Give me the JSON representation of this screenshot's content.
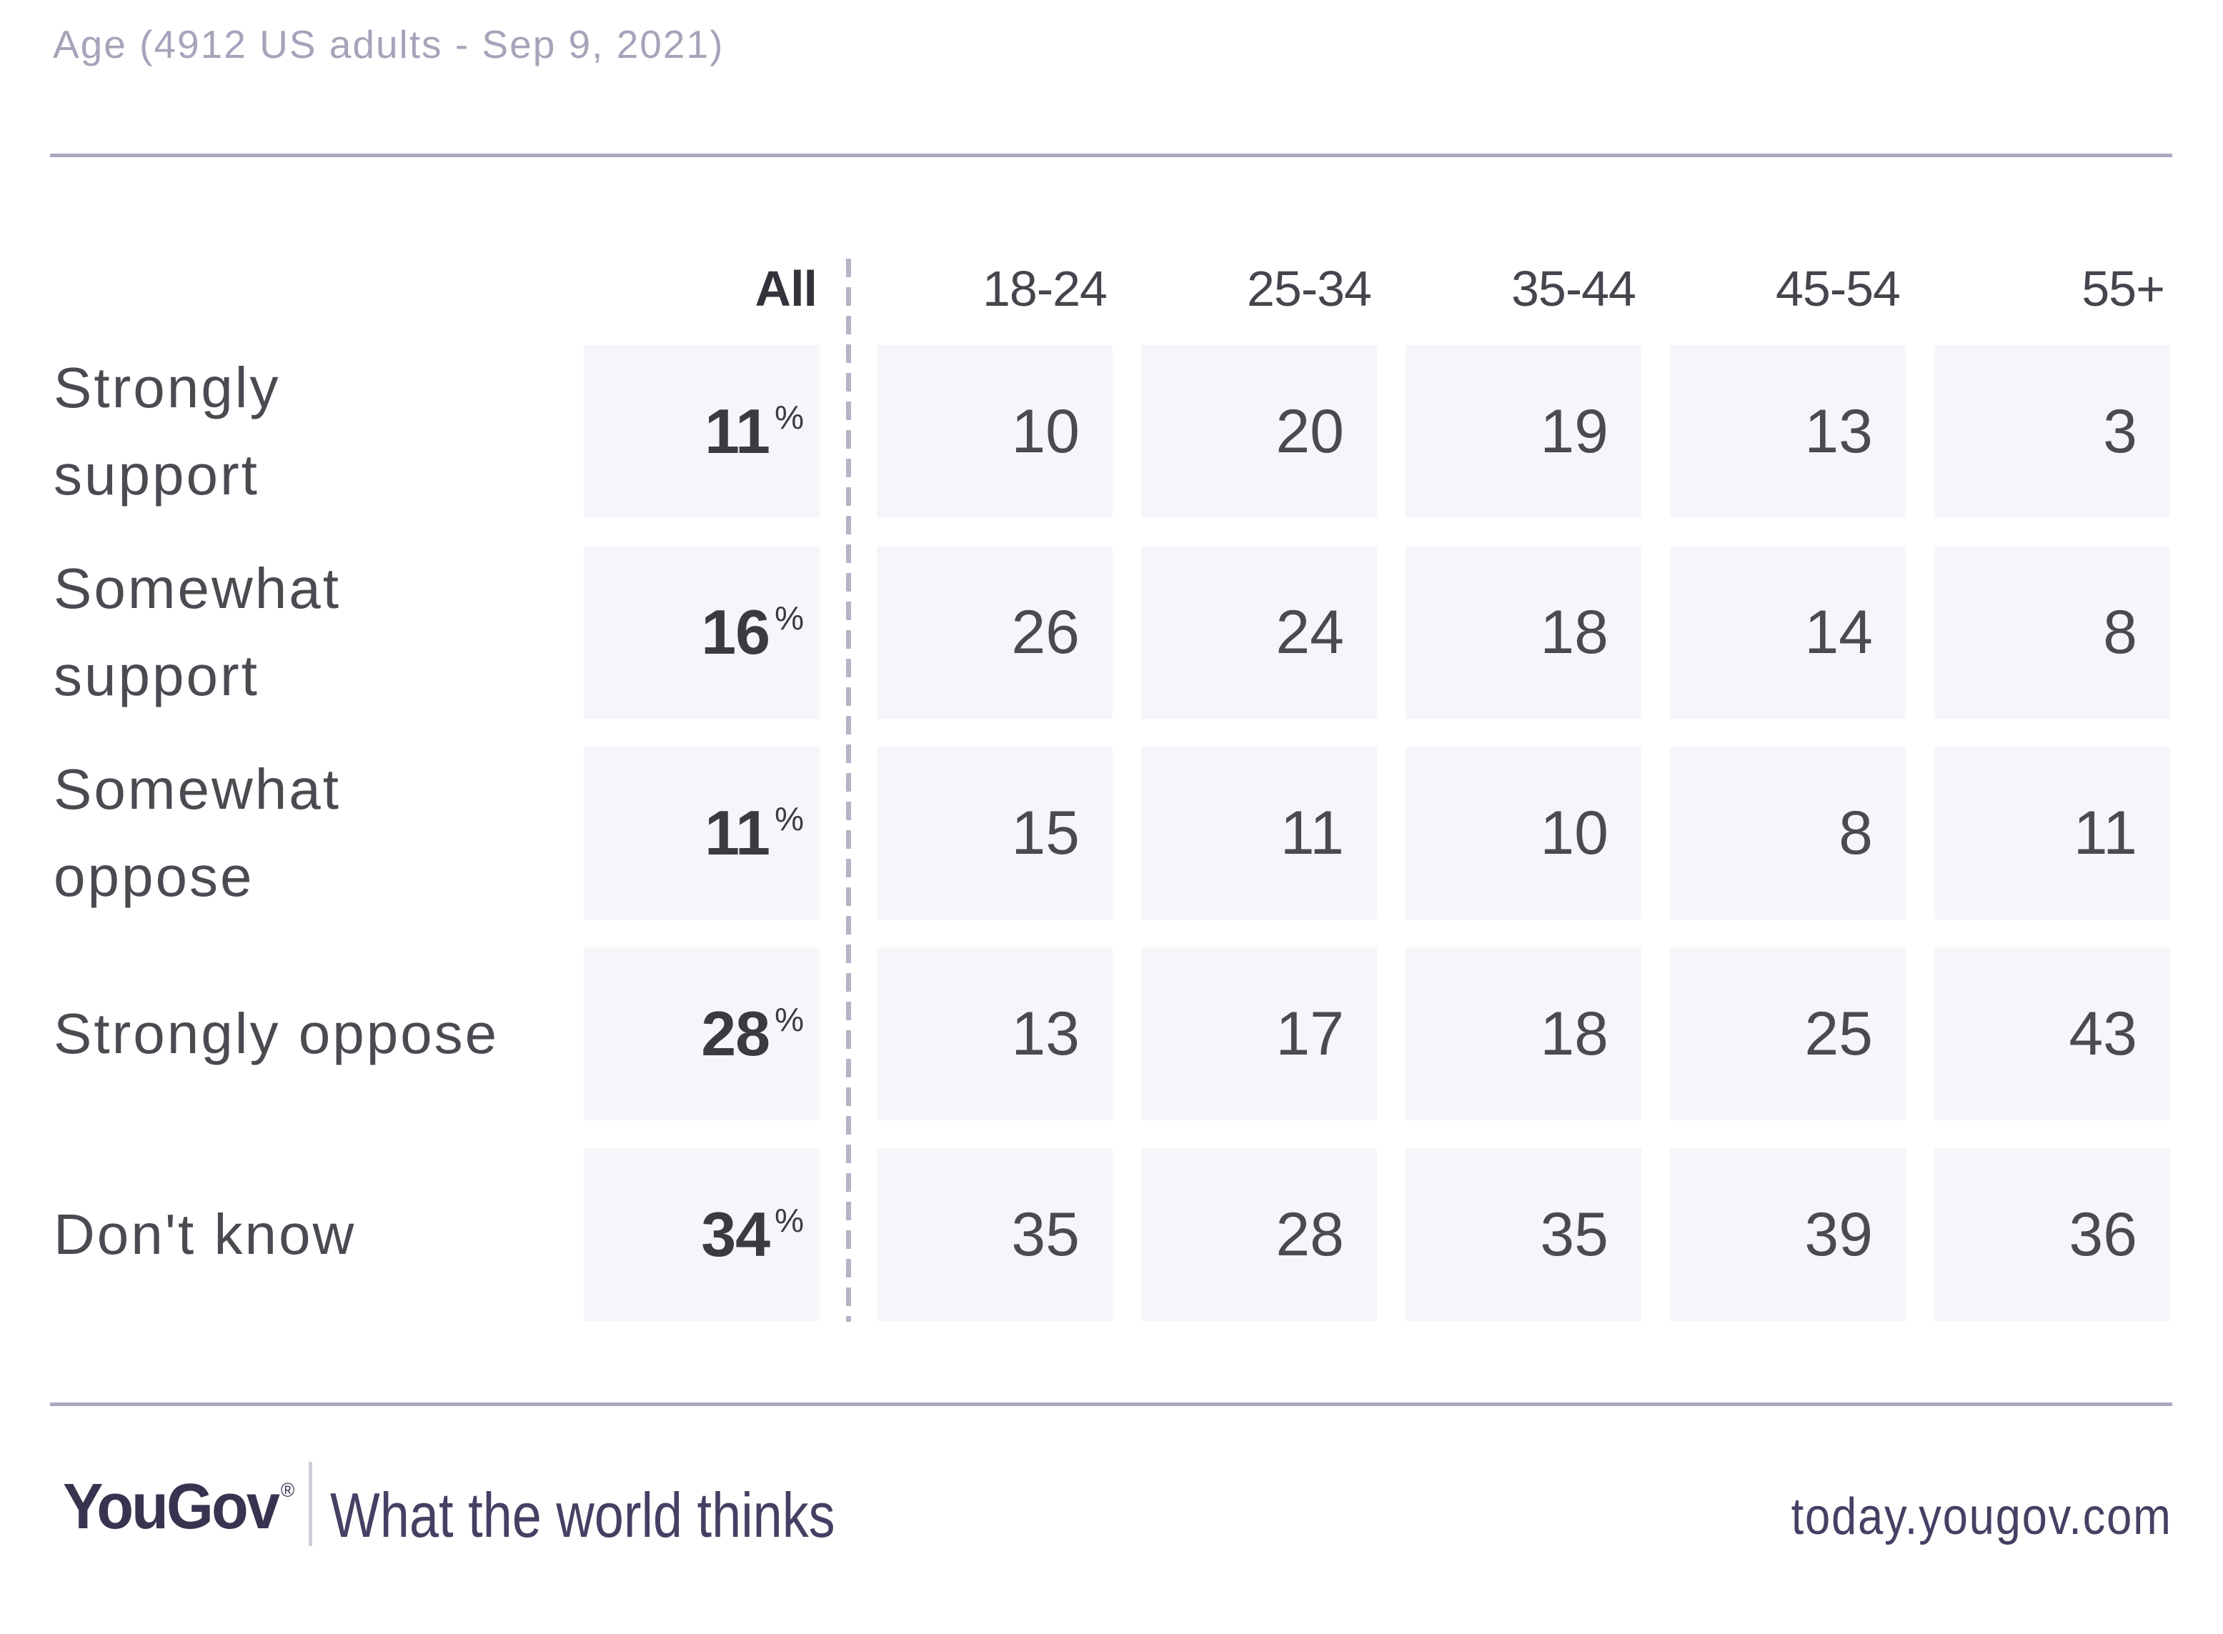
{
  "title": "Age (4912 US adults - Sep 9, 2021)",
  "chart_data": {
    "type": "table",
    "title": "Age (4912 US adults - Sep 9, 2021)",
    "columns": [
      "All",
      "18-24",
      "25-34",
      "35-44",
      "45-54",
      "55+"
    ],
    "unit": "percent",
    "rows": [
      {
        "label": "Strongly support",
        "all_pct": 11,
        "by_age": [
          10,
          20,
          19,
          13,
          3
        ]
      },
      {
        "label": "Somewhat support",
        "all_pct": 16,
        "by_age": [
          26,
          24,
          18,
          14,
          8
        ]
      },
      {
        "label": "Somewhat oppose",
        "all_pct": 11,
        "by_age": [
          15,
          11,
          10,
          8,
          11
        ]
      },
      {
        "label": "Strongly oppose",
        "all_pct": 28,
        "by_age": [
          13,
          17,
          18,
          25,
          43
        ]
      },
      {
        "label": "Don't know",
        "all_pct": 34,
        "by_age": [
          35,
          28,
          35,
          39,
          36
        ]
      }
    ],
    "layout": {
      "all_column_separated_by_dashed_line": true,
      "grid": "off",
      "legend": "none"
    }
  },
  "display": {
    "row_labels": [
      "Strongly\nsupport",
      "Somewhat\nsupport",
      "Somewhat\noppose",
      "Strongly oppose",
      "Don't know"
    ],
    "percent_sign": "%"
  },
  "footer": {
    "logo": "YouGov",
    "registered_mark": "®",
    "tagline": "What the world thinks",
    "url": "today.yougov.com"
  },
  "colors": {
    "background": "#ffffff",
    "cell_background": "#f6f6fa",
    "rule": "#aba7c0",
    "dashed_divider": "#b6b3c7",
    "title_muted": "#a7a3ba",
    "text_dark": "#4a4a51",
    "value_bold": "#3a3a41",
    "brand_purple": "#393350",
    "footer_text": "#454063"
  }
}
